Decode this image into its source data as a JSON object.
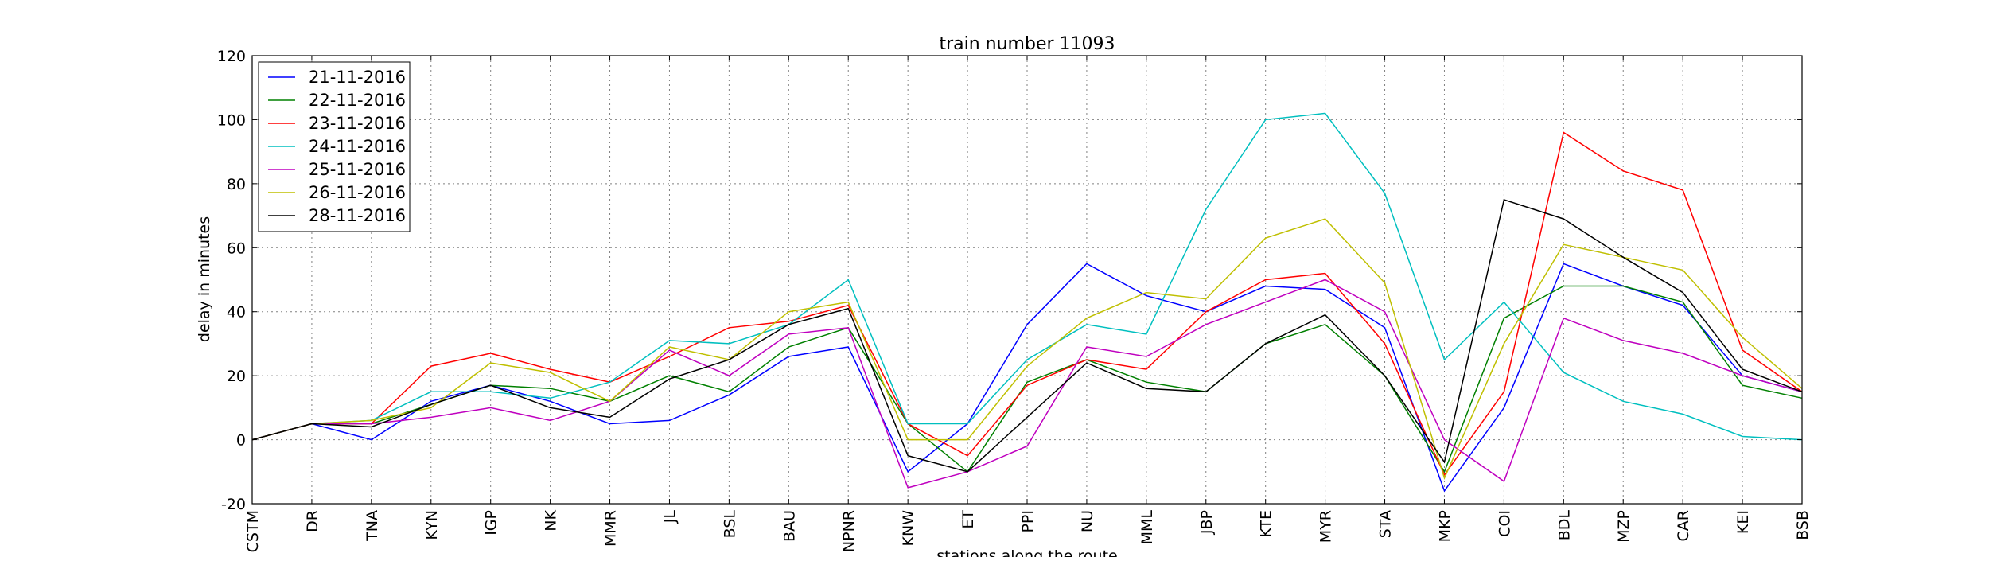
{
  "chart_data": {
    "type": "line",
    "title": "train number 11093",
    "xlabel": "stations along the route",
    "ylabel": "delay in minutes",
    "ylim": [
      -20,
      120
    ],
    "yticks": [
      -20,
      0,
      20,
      40,
      60,
      80,
      100,
      120
    ],
    "grid": true,
    "legend_position": "upper-left",
    "categories": [
      "CSTM",
      "DR",
      "TNA",
      "KYN",
      "IGP",
      "NK",
      "MMR",
      "JL",
      "BSL",
      "BAU",
      "NPNR",
      "KNW",
      "ET",
      "PPI",
      "NU",
      "MML",
      "JBP",
      "KTE",
      "MYR",
      "STA",
      "MKP",
      "COI",
      "BDL",
      "MZP",
      "CAR",
      "KEI",
      "BSB"
    ],
    "series": [
      {
        "name": "21-11-2016",
        "color": "#0000ff",
        "values": [
          0,
          5,
          0,
          12,
          17,
          12,
          5,
          6,
          14,
          26,
          29,
          -10,
          5,
          36,
          55,
          45,
          40,
          48,
          47,
          35,
          -16,
          10,
          55,
          48,
          42,
          20,
          15
        ]
      },
      {
        "name": "22-11-2016",
        "color": "#008000",
        "values": [
          0,
          5,
          5,
          11,
          17,
          16,
          12,
          20,
          15,
          29,
          35,
          5,
          -10,
          18,
          25,
          18,
          15,
          30,
          36,
          20,
          -10,
          38,
          48,
          48,
          43,
          17,
          13
        ]
      },
      {
        "name": "23-11-2016",
        "color": "#ff0000",
        "values": [
          0,
          5,
          5,
          23,
          27,
          22,
          18,
          26,
          35,
          37,
          42,
          5,
          -5,
          17,
          25,
          22,
          40,
          50,
          52,
          30,
          -11,
          15,
          96,
          84,
          78,
          28,
          15
        ]
      },
      {
        "name": "24-11-2016",
        "color": "#00bfbf",
        "values": [
          0,
          5,
          6,
          15,
          15,
          13,
          18,
          31,
          30,
          36,
          50,
          5,
          5,
          25,
          36,
          33,
          72,
          100,
          102,
          77,
          25,
          43,
          21,
          12,
          8,
          1,
          0
        ]
      },
      {
        "name": "25-11-2016",
        "color": "#bf00bf",
        "values": [
          0,
          5,
          5,
          7,
          10,
          6,
          12,
          28,
          20,
          33,
          35,
          -15,
          -10,
          -2,
          29,
          26,
          36,
          43,
          50,
          40,
          0,
          -13,
          38,
          31,
          27,
          20,
          15
        ]
      },
      {
        "name": "26-11-2016",
        "color": "#bfbf00",
        "values": [
          0,
          5,
          6,
          10,
          24,
          21,
          12,
          29,
          25,
          40,
          43,
          0,
          0,
          23,
          38,
          46,
          44,
          63,
          69,
          49,
          -12,
          30,
          61,
          57,
          53,
          32,
          16
        ]
      },
      {
        "name": "28-11-2016",
        "color": "#000000",
        "values": [
          0,
          5,
          4,
          11,
          17,
          10,
          7,
          19,
          25,
          36,
          41,
          -5,
          -10,
          7,
          24,
          16,
          15,
          30,
          39,
          20,
          -7,
          75,
          69,
          57,
          46,
          22,
          15
        ]
      }
    ]
  }
}
